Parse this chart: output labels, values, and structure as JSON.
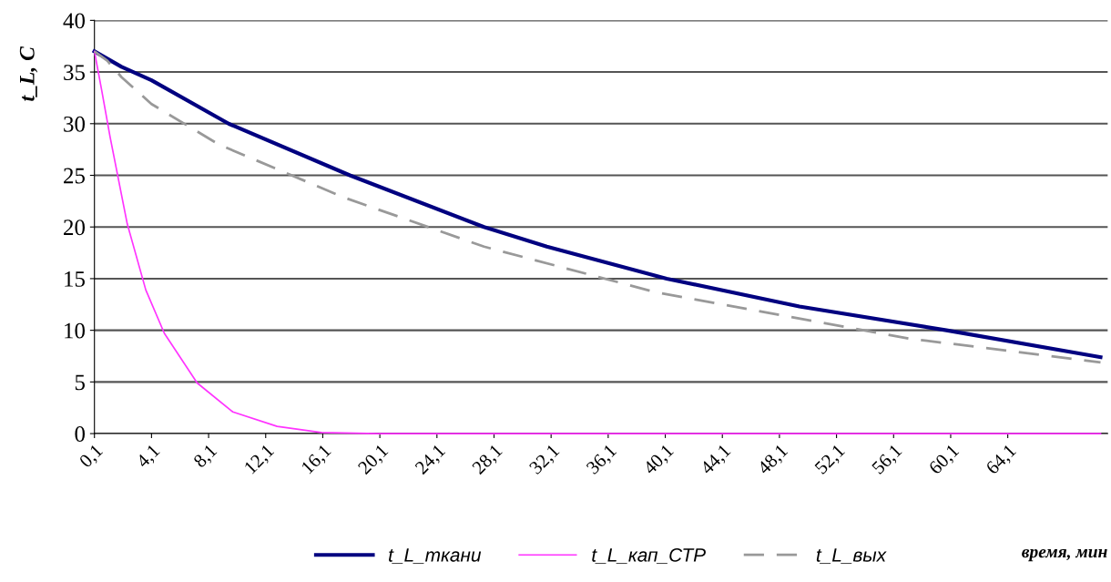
{
  "chart_data": {
    "type": "line",
    "xlabel": "время, мин",
    "ylabel": "t_L, C",
    "xlim": [
      0.1,
      71.1
    ],
    "ylim": [
      0,
      40
    ],
    "xticks": [
      {
        "value": 0.1,
        "label": "0,1"
      },
      {
        "value": 4.1,
        "label": "4,1"
      },
      {
        "value": 8.1,
        "label": "8,1"
      },
      {
        "value": 12.1,
        "label": "12,1"
      },
      {
        "value": 16.1,
        "label": "16,1"
      },
      {
        "value": 20.1,
        "label": "20,1"
      },
      {
        "value": 24.1,
        "label": "24,1"
      },
      {
        "value": 28.1,
        "label": "28,1"
      },
      {
        "value": 32.1,
        "label": "32,1"
      },
      {
        "value": 36.1,
        "label": "36,1"
      },
      {
        "value": 40.1,
        "label": "40,1"
      },
      {
        "value": 44.1,
        "label": "44,1"
      },
      {
        "value": 48.1,
        "label": "48,1"
      },
      {
        "value": 52.1,
        "label": "52,1"
      },
      {
        "value": 56.1,
        "label": "56,1"
      },
      {
        "value": 60.1,
        "label": "60,1"
      },
      {
        "value": 64.1,
        "label": "64,1"
      }
    ],
    "yticks": [
      0,
      5,
      10,
      15,
      20,
      25,
      30,
      35,
      40
    ],
    "grid": "y",
    "legend": "bottom",
    "marker": "none",
    "series": [
      {
        "name": "t_L_ткани",
        "color": "#000080",
        "line_style": "solid",
        "x": [
          0.1,
          2,
          4.1,
          9.5,
          18.0,
          27.4,
          31.8,
          40.2,
          49.5,
          59.8,
          70.6
        ],
        "values": [
          37,
          35.5,
          34.2,
          30,
          25,
          20,
          18.1,
          15,
          12.3,
          10,
          7.4
        ]
      },
      {
        "name": "t_L_кап_СТР",
        "color": "#ff33ff",
        "line_style": "solid",
        "x": [
          0.1,
          0.6,
          1.2,
          2.4,
          3.7,
          5.0,
          7.3,
          9.8,
          12.9,
          16.0,
          20,
          70.6
        ],
        "values": [
          37,
          33.3,
          28.7,
          20.3,
          13.9,
          9.7,
          4.9,
          2.1,
          0.7,
          0.1,
          0,
          0
        ]
      },
      {
        "name": "t_L_вых",
        "color": "#999999",
        "line_style": "dashed",
        "x": [
          0.1,
          1,
          2,
          4.1,
          8.8,
          17.5,
          27.4,
          39.4,
          57.2,
          70.6
        ],
        "values": [
          37,
          36.1,
          34.5,
          31.9,
          28.0,
          22.9,
          18.1,
          13.7,
          9.2,
          6.9
        ]
      }
    ]
  }
}
